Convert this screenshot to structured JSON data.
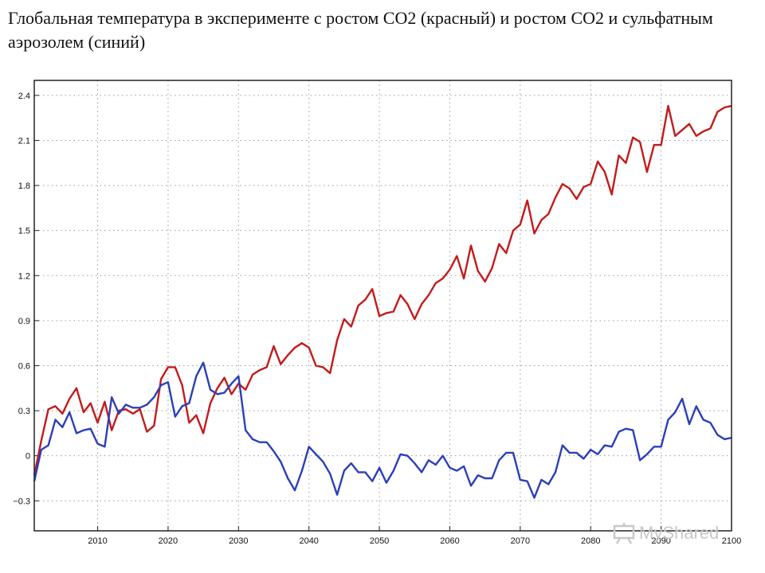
{
  "title": "Глобальная температура в эксперименте с ростом CO2 (красный) и ростом CO2 и сульфатным аэрозолем (синий)",
  "watermark": "MyShared",
  "chart_data": {
    "type": "line",
    "title": "Глобальная температура в эксперименте с ростом CO2 (красный) и ростом CO2 и сульфатным аэрозолем (синий)",
    "xlabel": "",
    "ylabel": "",
    "xlim": [
      2001,
      2100
    ],
    "ylim": [
      -0.5,
      2.5
    ],
    "grid": true,
    "x_ticks": [
      2010,
      2020,
      2030,
      2040,
      2050,
      2060,
      2070,
      2080,
      2090,
      2100
    ],
    "y_ticks": [
      -0.3,
      0,
      0.3,
      0.6,
      0.9,
      1.2,
      1.5,
      1.8,
      2.1,
      2.4
    ],
    "x_tick_labels": [
      "2010",
      "2020",
      "2030",
      "2040",
      "2050",
      "2060",
      "2070",
      "2080",
      "2090",
      "2100"
    ],
    "y_tick_labels": [
      "−0.3",
      "0",
      "0.3",
      "0.6",
      "0.9",
      "1.2",
      "1.5",
      "1.8",
      "2.1",
      "2.4"
    ],
    "series": [
      {
        "color": "#c41a1a",
        "x": [
          2001,
          2002,
          2003,
          2004,
          2005,
          2006,
          2007,
          2008,
          2009,
          2010,
          2011,
          2012,
          2013,
          2014,
          2015,
          2016,
          2017,
          2018,
          2019,
          2020,
          2021,
          2022,
          2023,
          2024,
          2025,
          2026,
          2027,
          2028,
          2029,
          2030,
          2031,
          2032,
          2033,
          2034,
          2035,
          2036,
          2037,
          2038,
          2039,
          2040,
          2041,
          2042,
          2043,
          2044,
          2045,
          2046,
          2047,
          2048,
          2049,
          2050,
          2051,
          2052,
          2053,
          2054,
          2055,
          2056,
          2057,
          2058,
          2059,
          2060,
          2061,
          2062,
          2063,
          2064,
          2065,
          2066,
          2067,
          2068,
          2069,
          2070,
          2071,
          2072,
          2073,
          2074,
          2075,
          2076,
          2077,
          2078,
          2079,
          2080,
          2081,
          2082,
          2083,
          2084,
          2085,
          2086,
          2087,
          2088,
          2089,
          2090,
          2091,
          2092,
          2093,
          2094,
          2095,
          2096,
          2097,
          2098,
          2099,
          2100
        ],
        "y": [
          -0.13,
          0.1,
          0.31,
          0.33,
          0.28,
          0.38,
          0.45,
          0.29,
          0.35,
          0.22,
          0.36,
          0.17,
          0.3,
          0.31,
          0.28,
          0.31,
          0.16,
          0.2,
          0.51,
          0.59,
          0.59,
          0.47,
          0.22,
          0.27,
          0.15,
          0.35,
          0.45,
          0.52,
          0.41,
          0.48,
          0.44,
          0.54,
          0.57,
          0.59,
          0.73,
          0.61,
          0.67,
          0.72,
          0.75,
          0.72,
          0.6,
          0.59,
          0.55,
          0.77,
          0.91,
          0.86,
          1.0,
          1.04,
          1.11,
          0.93,
          0.95,
          0.96,
          1.07,
          1.01,
          0.91,
          1.01,
          1.07,
          1.15,
          1.18,
          1.24,
          1.33,
          1.18,
          1.4,
          1.23,
          1.16,
          1.25,
          1.41,
          1.35,
          1.5,
          1.54,
          1.7,
          1.48,
          1.57,
          1.61,
          1.72,
          1.81,
          1.78,
          1.71,
          1.79,
          1.81,
          1.96,
          1.89,
          1.74,
          2.0,
          1.95,
          2.12,
          2.09,
          1.89,
          2.07,
          2.07,
          2.33,
          2.13,
          2.17,
          2.21,
          2.13,
          2.16,
          2.18,
          2.29,
          2.32,
          2.33
        ]
      },
      {
        "color": "#2b3fb8",
        "x": [
          2001,
          2002,
          2003,
          2004,
          2005,
          2006,
          2007,
          2008,
          2009,
          2010,
          2011,
          2012,
          2013,
          2014,
          2015,
          2016,
          2017,
          2018,
          2019,
          2020,
          2021,
          2022,
          2023,
          2024,
          2025,
          2026,
          2027,
          2028,
          2029,
          2030,
          2031,
          2032,
          2033,
          2034,
          2035,
          2036,
          2037,
          2038,
          2039,
          2040,
          2041,
          2042,
          2043,
          2044,
          2045,
          2046,
          2047,
          2048,
          2049,
          2050,
          2051,
          2052,
          2053,
          2054,
          2055,
          2056,
          2057,
          2058,
          2059,
          2060,
          2061,
          2062,
          2063,
          2064,
          2065,
          2066,
          2067,
          2068,
          2069,
          2070,
          2071,
          2072,
          2073,
          2074,
          2075,
          2076,
          2077,
          2078,
          2079,
          2080,
          2081,
          2082,
          2083,
          2084,
          2085,
          2086,
          2087,
          2088,
          2089,
          2090,
          2091,
          2092,
          2093,
          2094,
          2095,
          2096,
          2097,
          2098,
          2099,
          2100
        ],
        "y": [
          -0.17,
          0.04,
          0.07,
          0.24,
          0.19,
          0.29,
          0.15,
          0.17,
          0.18,
          0.08,
          0.06,
          0.39,
          0.28,
          0.34,
          0.32,
          0.32,
          0.34,
          0.39,
          0.47,
          0.49,
          0.26,
          0.33,
          0.35,
          0.53,
          0.62,
          0.44,
          0.41,
          0.42,
          0.48,
          0.53,
          0.17,
          0.11,
          0.09,
          0.09,
          0.03,
          -0.04,
          -0.15,
          -0.23,
          -0.1,
          0.06,
          0.01,
          -0.04,
          -0.12,
          -0.26,
          -0.1,
          -0.05,
          -0.11,
          -0.11,
          -0.17,
          -0.08,
          -0.18,
          -0.1,
          0.01,
          0.0,
          -0.05,
          -0.11,
          -0.03,
          -0.06,
          0.0,
          -0.08,
          -0.1,
          -0.07,
          -0.2,
          -0.13,
          -0.15,
          -0.15,
          -0.03,
          0.02,
          0.02,
          -0.16,
          -0.17,
          -0.28,
          -0.16,
          -0.19,
          -0.11,
          0.07,
          0.02,
          0.02,
          -0.02,
          0.04,
          0.01,
          0.07,
          0.06,
          0.16,
          0.18,
          0.17,
          -0.03,
          0.01,
          0.06,
          0.06,
          0.24,
          0.29,
          0.38,
          0.21,
          0.33,
          0.24,
          0.22,
          0.14,
          0.11,
          0.12
        ]
      }
    ]
  }
}
